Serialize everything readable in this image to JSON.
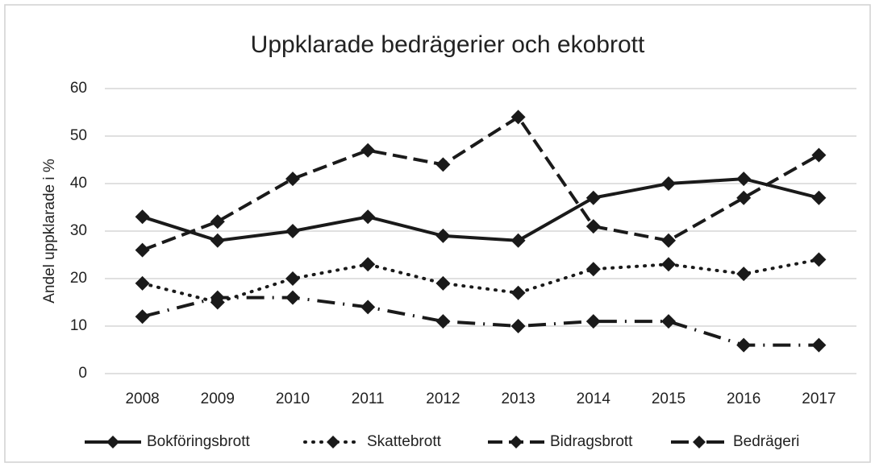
{
  "chart_data": {
    "type": "line",
    "title": "Uppklarade bedrägerier och ekobrott",
    "y_label": "Andel uppklarade i %",
    "categories": [
      "2008",
      "2009",
      "2010",
      "2011",
      "2012",
      "2013",
      "2014",
      "2015",
      "2016",
      "2017"
    ],
    "series": [
      {
        "name": "Bokföringsbrott",
        "color": "#1a1a1a",
        "values": [
          33,
          28,
          30,
          33,
          29,
          28,
          37,
          40,
          41,
          37
        ]
      },
      {
        "name": "Skattebrott",
        "color": "#1a1a1a",
        "values": [
          19,
          15,
          20,
          23,
          19,
          17,
          22,
          23,
          21,
          24
        ]
      },
      {
        "name": "Bidragsbrott",
        "color": "#1a1a1a",
        "values": [
          26,
          32,
          41,
          47,
          44,
          54,
          31,
          28,
          37,
          46
        ]
      },
      {
        "name": "Bedrägeri",
        "color": "#1a1a1a",
        "values": [
          12,
          16,
          16,
          14,
          11,
          10,
          11,
          11,
          6,
          6
        ]
      }
    ],
    "ylim": [
      0,
      60
    ],
    "yticks": [
      0,
      10,
      20,
      30,
      40,
      50,
      60
    ],
    "grid": true,
    "legend": "bottom"
  }
}
